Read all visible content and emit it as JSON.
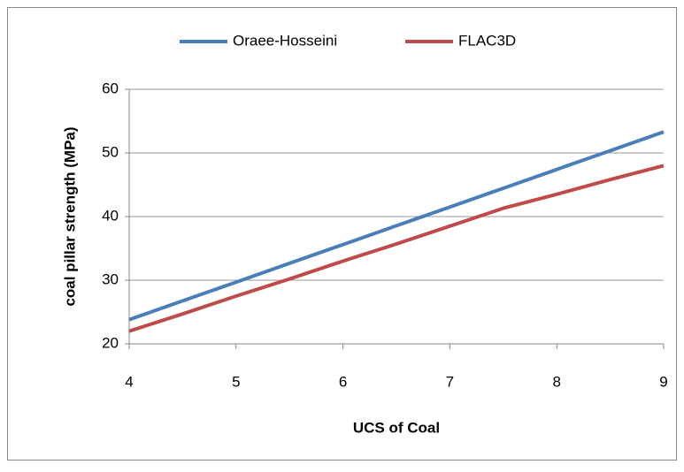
{
  "chart_data": {
    "type": "line",
    "x_label": "UCS of Coal",
    "y_label": "coal pillar strength (MPa)",
    "x": [
      4,
      4.5,
      5,
      5.5,
      6,
      6.5,
      7,
      7.5,
      8,
      8.5,
      9
    ],
    "series": [
      {
        "name": "Oraee-Hosseini",
        "color": "#4a7ebb",
        "values": [
          23.8,
          26.75,
          29.7,
          32.65,
          35.6,
          38.55,
          41.5,
          44.45,
          47.4,
          50.35,
          53.3
        ]
      },
      {
        "name": "FLAC3D",
        "color": "#be4b48",
        "values": [
          22,
          24.7,
          27.5,
          30.2,
          33,
          35.7,
          38.5,
          41.3,
          43.5,
          45.8,
          48
        ]
      }
    ],
    "xlim": [
      4,
      9
    ],
    "xticks": [
      4,
      5,
      6,
      7,
      8,
      9
    ],
    "ylim": [
      20,
      60
    ],
    "yticks": [
      20,
      30,
      40,
      50,
      60
    ],
    "grid": true,
    "legend": "top"
  }
}
